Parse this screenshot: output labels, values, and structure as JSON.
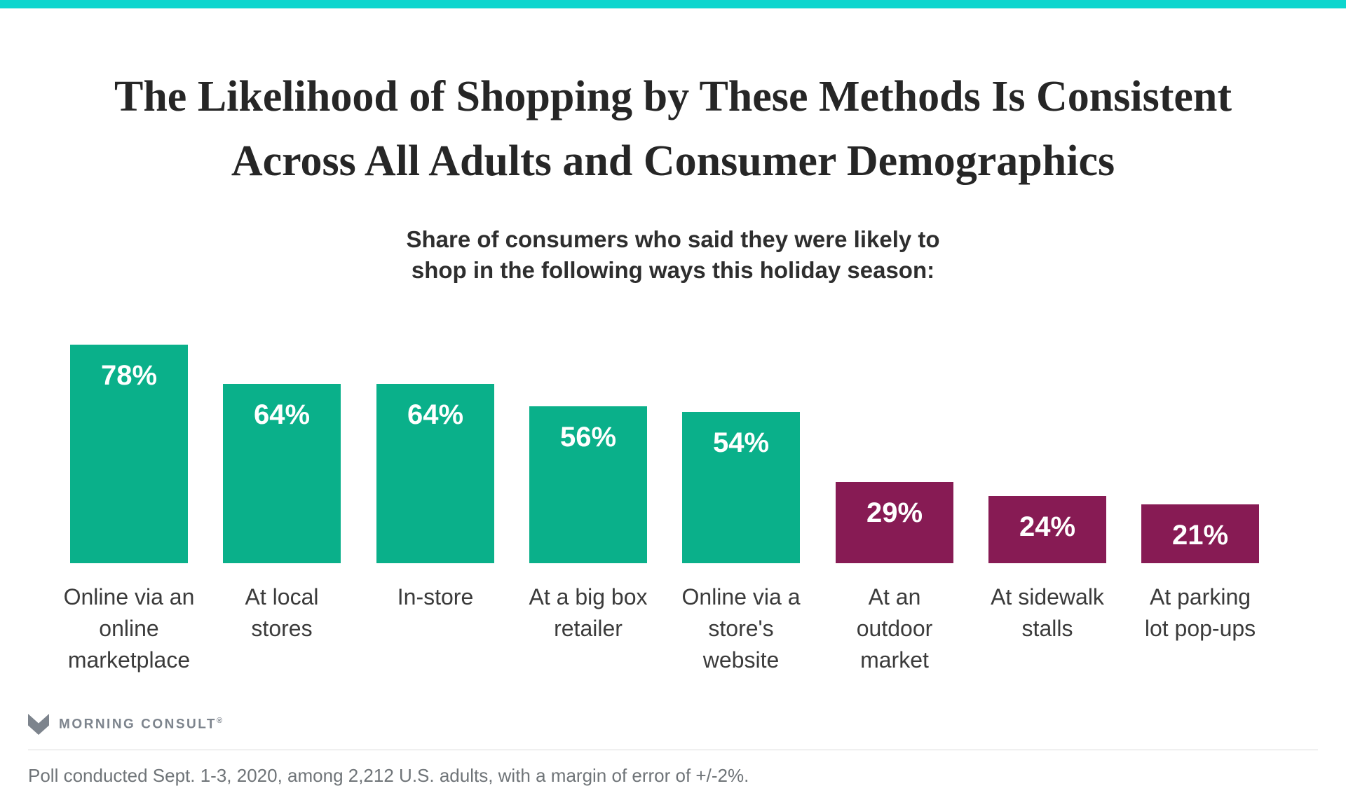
{
  "page": {
    "top_bar_color": "#0DD6CE",
    "title": "The Likelihood of Shopping by These Methods Is Consistent\nAcross All Adults and Consumer Demographics",
    "subtitle": "Share of consumers who said they were likely to\nshop in the following ways this holiday season:"
  },
  "chart_data": {
    "type": "bar",
    "title": "The Likelihood of Shopping by These Methods Is Consistent Across All Adults and Consumer Demographics",
    "subtitle": "Share of consumers who said they were likely to shop in the following ways this holiday season:",
    "categories": [
      "Online via an\nonline\nmarketplace",
      "At local\nstores",
      "In-store",
      "At a big box\nretailer",
      "Online via a\nstore's\nwebsite",
      "At an\noutdoor\nmarket",
      "At sidewalk\nstalls",
      "At parking\nlot pop-ups"
    ],
    "values": [
      78,
      64,
      64,
      56,
      54,
      29,
      24,
      21
    ],
    "value_labels": [
      "78%",
      "64%",
      "64%",
      "56%",
      "54%",
      "29%",
      "24%",
      "21%"
    ],
    "bar_colors": [
      "#0AB08A",
      "#0AB08A",
      "#0AB08A",
      "#0AB08A",
      "#0AB08A",
      "#871B54",
      "#871B54",
      "#871B54"
    ],
    "color_legend": {
      "teal": "#0AB08A",
      "maroon": "#871B54"
    },
    "ylim": [
      0,
      100
    ],
    "grid": false,
    "axes_shown": false,
    "value_label_position": "inside-top",
    "xlabel": "",
    "ylabel": ""
  },
  "footer": {
    "logo_icon": "morning-consult-m-mark",
    "logo_text": "MORNING CONSULT",
    "registered_mark": "®",
    "logo_color": "#7D848D",
    "source_note": "Poll conducted Sept. 1-3, 2020, among 2,212 U.S. adults, with a margin of error of +/-2%."
  }
}
